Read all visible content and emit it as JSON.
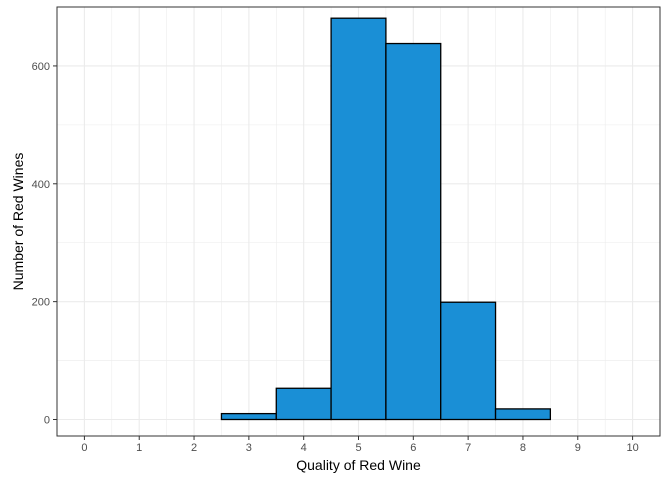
{
  "chart_data": {
    "type": "bar",
    "xlabel": "Quality of Red Wine",
    "ylabel": "Number of Red Wines",
    "x_ticks": [
      "0",
      "1",
      "2",
      "3",
      "4",
      "5",
      "6",
      "7",
      "8",
      "9",
      "10"
    ],
    "y_ticks": [
      "0",
      "200",
      "400",
      "600"
    ],
    "xlim": [
      -0.5,
      10.5
    ],
    "ylim": [
      -28,
      700
    ],
    "bin_width": 1,
    "bins": [
      {
        "x": 1,
        "count": 0
      },
      {
        "x": 2,
        "count": 0
      },
      {
        "x": 3,
        "count": 10
      },
      {
        "x": 4,
        "count": 53
      },
      {
        "x": 5,
        "count": 681
      },
      {
        "x": 6,
        "count": 638
      },
      {
        "x": 7,
        "count": 199
      },
      {
        "x": 8,
        "count": 18
      },
      {
        "x": 9,
        "count": 0
      }
    ],
    "grid": true,
    "colors": {
      "bar_fill": "#1a8fd6",
      "bar_stroke": "#000000",
      "grid": "#ebebeb",
      "panel_border": "#333333"
    }
  }
}
